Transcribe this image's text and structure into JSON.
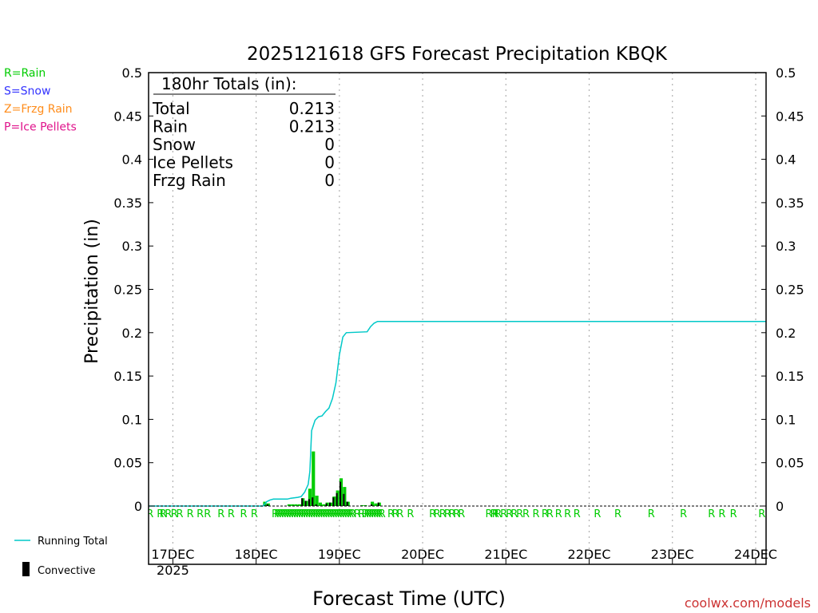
{
  "chart_data": {
    "type": "bar",
    "title": "2025121618 GFS Forecast Precipitation KBQK",
    "xlabel": "Forecast Time (UTC)",
    "ylabel": "Precipitation (in)",
    "ylim": [
      0,
      0.5
    ],
    "xlim_hours": [
      -1,
      177
    ],
    "yticks": [
      0,
      0.05,
      0.1,
      0.15,
      0.2,
      0.25,
      0.3,
      0.35,
      0.4,
      0.45,
      0.5
    ],
    "ytick_labels": [
      "0",
      "0.05",
      "0.1",
      "0.15",
      "0.2",
      "0.25",
      "0.3",
      "0.35",
      "0.4",
      "0.45",
      "0.5"
    ],
    "xticks": [
      {
        "hour": 6,
        "label": "17DEC",
        "sublabel": "2025"
      },
      {
        "hour": 30,
        "label": "18DEC"
      },
      {
        "hour": 54,
        "label": "19DEC"
      },
      {
        "hour": 78,
        "label": "20DEC"
      },
      {
        "hour": 102,
        "label": "21DEC"
      },
      {
        "hour": 126,
        "label": "22DEC"
      },
      {
        "hour": 150,
        "label": "23DEC"
      },
      {
        "hour": 174,
        "label": "24DEC"
      }
    ],
    "grid": "dotted vertical at day boundaries",
    "legend_left": [
      {
        "text": "R=Rain",
        "color": "#00cc00"
      },
      {
        "text": "S=Snow",
        "color": "#3333ff"
      },
      {
        "text": "Z=Frzg Rain",
        "color": "#ff8c1a"
      },
      {
        "text": "P=Ice Pellets",
        "color": "#e0148c"
      }
    ],
    "legend_bottom": {
      "running_total_label": "Running Total",
      "convective_label": "Convective",
      "running_total_color": "#00c8c8",
      "rain_color": "#00cc00",
      "convective_color": "#000000"
    },
    "totals_box": {
      "header": "180hr Totals (in):",
      "rows": [
        {
          "label": "Total",
          "value": "0.213"
        },
        {
          "label": "Rain",
          "value": "0.213"
        },
        {
          "label": "Snow",
          "value": "0"
        },
        {
          "label": "Ice Pellets",
          "value": "0"
        },
        {
          "label": "Frzg Rain",
          "value": "0"
        }
      ]
    },
    "precip_bars": [
      {
        "hour": 32.5,
        "total": 0.005,
        "conv": 0.002
      },
      {
        "hour": 33.5,
        "total": 0.003,
        "conv": 0.002
      },
      {
        "hour": 39.5,
        "total": 0.002,
        "conv": 0.0
      },
      {
        "hour": 40.5,
        "total": 0.002,
        "conv": 0.0
      },
      {
        "hour": 41.5,
        "total": 0.002,
        "conv": 0.0
      },
      {
        "hour": 42.5,
        "total": 0.002,
        "conv": 0.0
      },
      {
        "hour": 43.5,
        "total": 0.009,
        "conv": 0.009
      },
      {
        "hour": 44.5,
        "total": 0.006,
        "conv": 0.006
      },
      {
        "hour": 45.5,
        "total": 0.02,
        "conv": 0.008
      },
      {
        "hour": 46.5,
        "total": 0.063,
        "conv": 0.01
      },
      {
        "hour": 47.5,
        "total": 0.012,
        "conv": 0.002
      },
      {
        "hour": 48.5,
        "total": 0.004,
        "conv": 0.0
      },
      {
        "hour": 49.5,
        "total": 0.002,
        "conv": 0.0
      },
      {
        "hour": 50.5,
        "total": 0.004,
        "conv": 0.003
      },
      {
        "hour": 51.5,
        "total": 0.004,
        "conv": 0.004
      },
      {
        "hour": 52.5,
        "total": 0.011,
        "conv": 0.01
      },
      {
        "hour": 53.5,
        "total": 0.018,
        "conv": 0.015
      },
      {
        "hour": 54.5,
        "total": 0.032,
        "conv": 0.028
      },
      {
        "hour": 55.5,
        "total": 0.022,
        "conv": 0.014
      },
      {
        "hour": 56.5,
        "total": 0.005,
        "conv": 0.005
      },
      {
        "hour": 60.5,
        "total": 0.001,
        "conv": 0.0
      },
      {
        "hour": 61.5,
        "total": 0.001,
        "conv": 0.0
      },
      {
        "hour": 63.5,
        "total": 0.005,
        "conv": 0.002
      },
      {
        "hour": 64.5,
        "total": 0.003,
        "conv": 0.0
      },
      {
        "hour": 65.5,
        "total": 0.004,
        "conv": 0.004
      }
    ],
    "running_total": [
      {
        "hour": -1,
        "value": 0
      },
      {
        "hour": 32,
        "value": 0
      },
      {
        "hour": 33,
        "value": 0.005
      },
      {
        "hour": 34,
        "value": 0.007
      },
      {
        "hour": 35,
        "value": 0.008
      },
      {
        "hour": 39,
        "value": 0.008
      },
      {
        "hour": 40,
        "value": 0.009
      },
      {
        "hour": 42,
        "value": 0.01
      },
      {
        "hour": 43,
        "value": 0.011
      },
      {
        "hour": 44,
        "value": 0.016
      },
      {
        "hour": 45,
        "value": 0.025
      },
      {
        "hour": 45.5,
        "value": 0.04
      },
      {
        "hour": 46,
        "value": 0.087
      },
      {
        "hour": 47,
        "value": 0.099
      },
      {
        "hour": 48,
        "value": 0.103
      },
      {
        "hour": 49,
        "value": 0.104
      },
      {
        "hour": 50,
        "value": 0.109
      },
      {
        "hour": 51,
        "value": 0.113
      },
      {
        "hour": 52,
        "value": 0.124
      },
      {
        "hour": 53,
        "value": 0.142
      },
      {
        "hour": 54,
        "value": 0.174
      },
      {
        "hour": 55,
        "value": 0.195
      },
      {
        "hour": 56,
        "value": 0.2
      },
      {
        "hour": 62,
        "value": 0.201
      },
      {
        "hour": 63,
        "value": 0.207
      },
      {
        "hour": 64,
        "value": 0.211
      },
      {
        "hour": 65,
        "value": 0.213
      },
      {
        "hour": 177,
        "value": 0.213
      }
    ],
    "rain_marker_hours": [
      -0.6,
      2.4,
      3.2,
      4.7,
      6.4,
      8.0,
      11.0,
      13.9,
      16.0,
      19.9,
      22.8,
      26.4,
      29.5,
      35.5,
      36.2,
      36.9,
      37.6,
      38.3,
      39.0,
      39.7,
      40.4,
      41.1,
      41.8,
      42.5,
      43.2,
      43.9,
      44.6,
      45.3,
      46.0,
      46.7,
      47.4,
      48.1,
      48.8,
      49.5,
      50.2,
      50.9,
      51.6,
      52.3,
      53.0,
      53.7,
      54.4,
      55.1,
      55.8,
      56.5,
      57.2,
      57.8,
      59.2,
      60.4,
      61.4,
      62.1,
      62.8,
      63.5,
      64.2,
      64.9,
      65.6,
      66.3,
      68.9,
      70.2,
      71.5,
      74.5,
      80.9,
      82.2,
      83.8,
      85.2,
      86.5,
      87.8,
      89.2,
      97.1,
      98.5,
      99.0,
      99.8,
      101.4,
      103.0,
      104.4,
      106.0,
      107.8,
      110.7,
      113.3,
      114.7,
      117.2,
      119.8,
      122.5,
      128.4,
      134.3,
      143.9,
      153.2,
      161.3,
      164.3,
      167.6,
      175.8
    ],
    "rain_marker_letter": "R",
    "footer": "coolwx.com/models"
  }
}
